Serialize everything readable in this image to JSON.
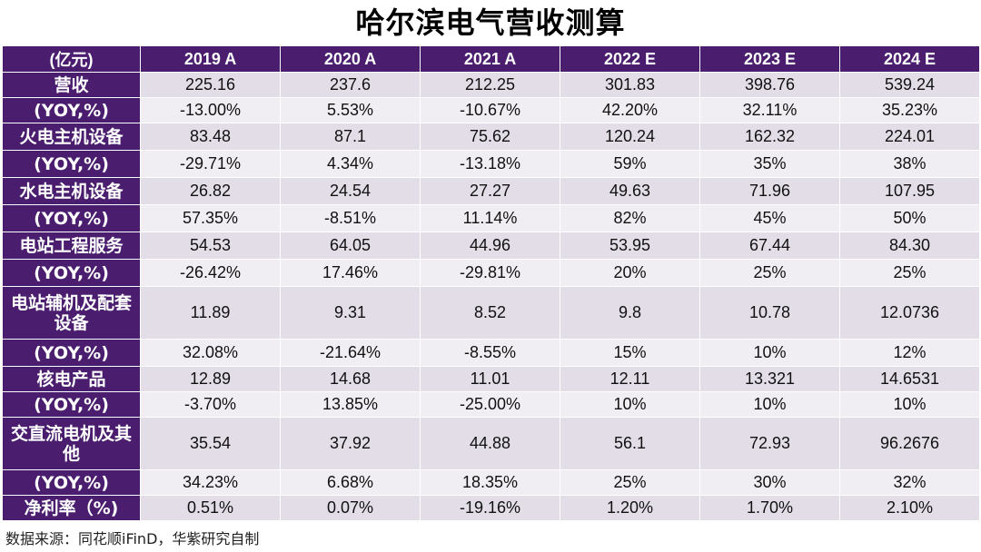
{
  "title": "哈尔滨电气营收测算",
  "header": [
    "(亿元)",
    "2019 A",
    "2020 A",
    "2021 A",
    "2022 E",
    "2023 E",
    "2024 E"
  ],
  "rows": [
    {
      "label": "营收",
      "values": [
        "225.16",
        "237.6",
        "212.25",
        "301.83",
        "398.76",
        "539.24"
      ]
    },
    {
      "label": "(YOY,%)",
      "values": [
        "-13.00%",
        "5.53%",
        "-10.67%",
        "42.20%",
        "32.11%",
        "35.23%"
      ]
    },
    {
      "label": "火电主机设备",
      "values": [
        "83.48",
        "87.1",
        "75.62",
        "120.24",
        "162.32",
        "224.01"
      ]
    },
    {
      "label": "(YOY,%)",
      "values": [
        "-29.71%",
        "4.34%",
        "-13.18%",
        "59%",
        "35%",
        "38%"
      ]
    },
    {
      "label": "水电主机设备",
      "values": [
        "26.82",
        "24.54",
        "27.27",
        "49.63",
        "71.96",
        "107.95"
      ]
    },
    {
      "label": "(YOY,%)",
      "values": [
        "57.35%",
        "-8.51%",
        "11.14%",
        "82%",
        "45%",
        "50%"
      ]
    },
    {
      "label": "电站工程服务",
      "values": [
        "54.53",
        "64.05",
        "44.96",
        "53.95",
        "67.44",
        "84.30"
      ]
    },
    {
      "label": "(YOY,%)",
      "values": [
        "-26.42%",
        "17.46%",
        "-29.81%",
        "20%",
        "25%",
        "25%"
      ]
    },
    {
      "label": "电站辅机及配套设备",
      "values": [
        "11.89",
        "9.31",
        "8.52",
        "9.8",
        "10.78",
        "12.0736"
      ]
    },
    {
      "label": "(YOY,%)",
      "values": [
        "32.08%",
        "-21.64%",
        "-8.55%",
        "15%",
        "10%",
        "12%"
      ]
    },
    {
      "label": "核电产品",
      "values": [
        "12.89",
        "14.68",
        "11.01",
        "12.11",
        "13.321",
        "14.6531"
      ]
    },
    {
      "label": "(YOY,%)",
      "values": [
        "-3.70%",
        "13.85%",
        "-25.00%",
        "10%",
        "10%",
        "10%"
      ]
    },
    {
      "label": "交直流电机及其他",
      "values": [
        "35.54",
        "37.92",
        "44.88",
        "56.1",
        "72.93",
        "96.2676"
      ]
    },
    {
      "label": "(YOY,%)",
      "values": [
        "34.23%",
        "6.68%",
        "18.35%",
        "25%",
        "30%",
        "32%"
      ]
    },
    {
      "label": "净利率（%)",
      "values": [
        "0.51%",
        "0.07%",
        "-19.16%",
        "1.20%",
        "1.70%",
        "2.10%"
      ]
    }
  ],
  "footnote": "数据来源：同花顺iFinD，华紫研究自制",
  "watermark": "华紫研究",
  "colors": {
    "header_bg": "#4a1d6e",
    "row_odd": "#e2dde7",
    "row_even": "#f1eef3"
  }
}
